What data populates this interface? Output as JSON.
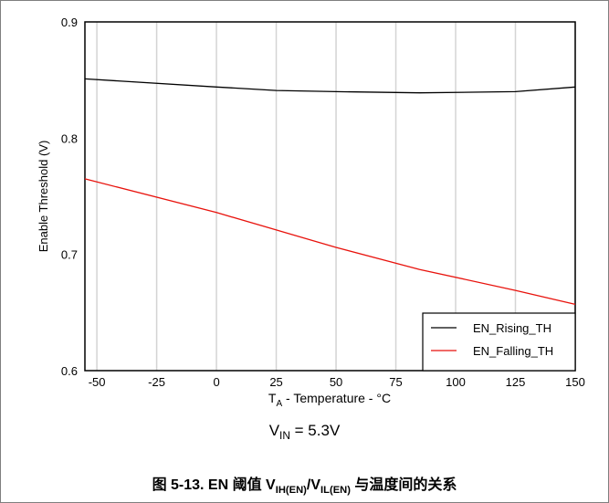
{
  "chart_data": {
    "type": "line",
    "title": "",
    "xlabel": {
      "main": "T",
      "sub": "A",
      "rest": " - Temperature - °C"
    },
    "ylabel": "Enable Threshold (V)",
    "xlim": [
      -55,
      150
    ],
    "ylim": [
      0.6,
      0.9
    ],
    "xticks": [
      -50,
      -25,
      0,
      25,
      50,
      75,
      100,
      125,
      150
    ],
    "yticks": [
      0.6,
      0.7,
      0.8,
      0.9
    ],
    "xtick_labels": [
      "-50",
      "-25",
      "0",
      "25",
      "50",
      "75",
      "100",
      "125",
      "150"
    ],
    "ytick_labels": [
      "0.6",
      "0.7",
      "0.8",
      "0.9"
    ],
    "grid": "vertical",
    "legend_position": "bottom-right",
    "series": [
      {
        "name": "EN_Rising_TH",
        "color": "#000000",
        "x": [
          -55,
          0,
          25,
          50,
          85,
          125,
          150
        ],
        "y": [
          0.851,
          0.844,
          0.841,
          0.84,
          0.839,
          0.84,
          0.844
        ]
      },
      {
        "name": "EN_Falling_TH",
        "color": "#e8120c",
        "x": [
          -55,
          0,
          25,
          50,
          85,
          125,
          150
        ],
        "y": [
          0.765,
          0.736,
          0.721,
          0.706,
          0.687,
          0.669,
          0.657
        ]
      }
    ]
  },
  "subtitle": {
    "main": "V",
    "sub": "IN",
    "rest": " = 5.3V"
  },
  "caption": {
    "prefix": "图 5-13. EN 阈值 V",
    "sub1": "IH(EN)",
    "mid": "/V",
    "sub2": "IL(EN)",
    "suffix": " 与温度间的关系"
  }
}
